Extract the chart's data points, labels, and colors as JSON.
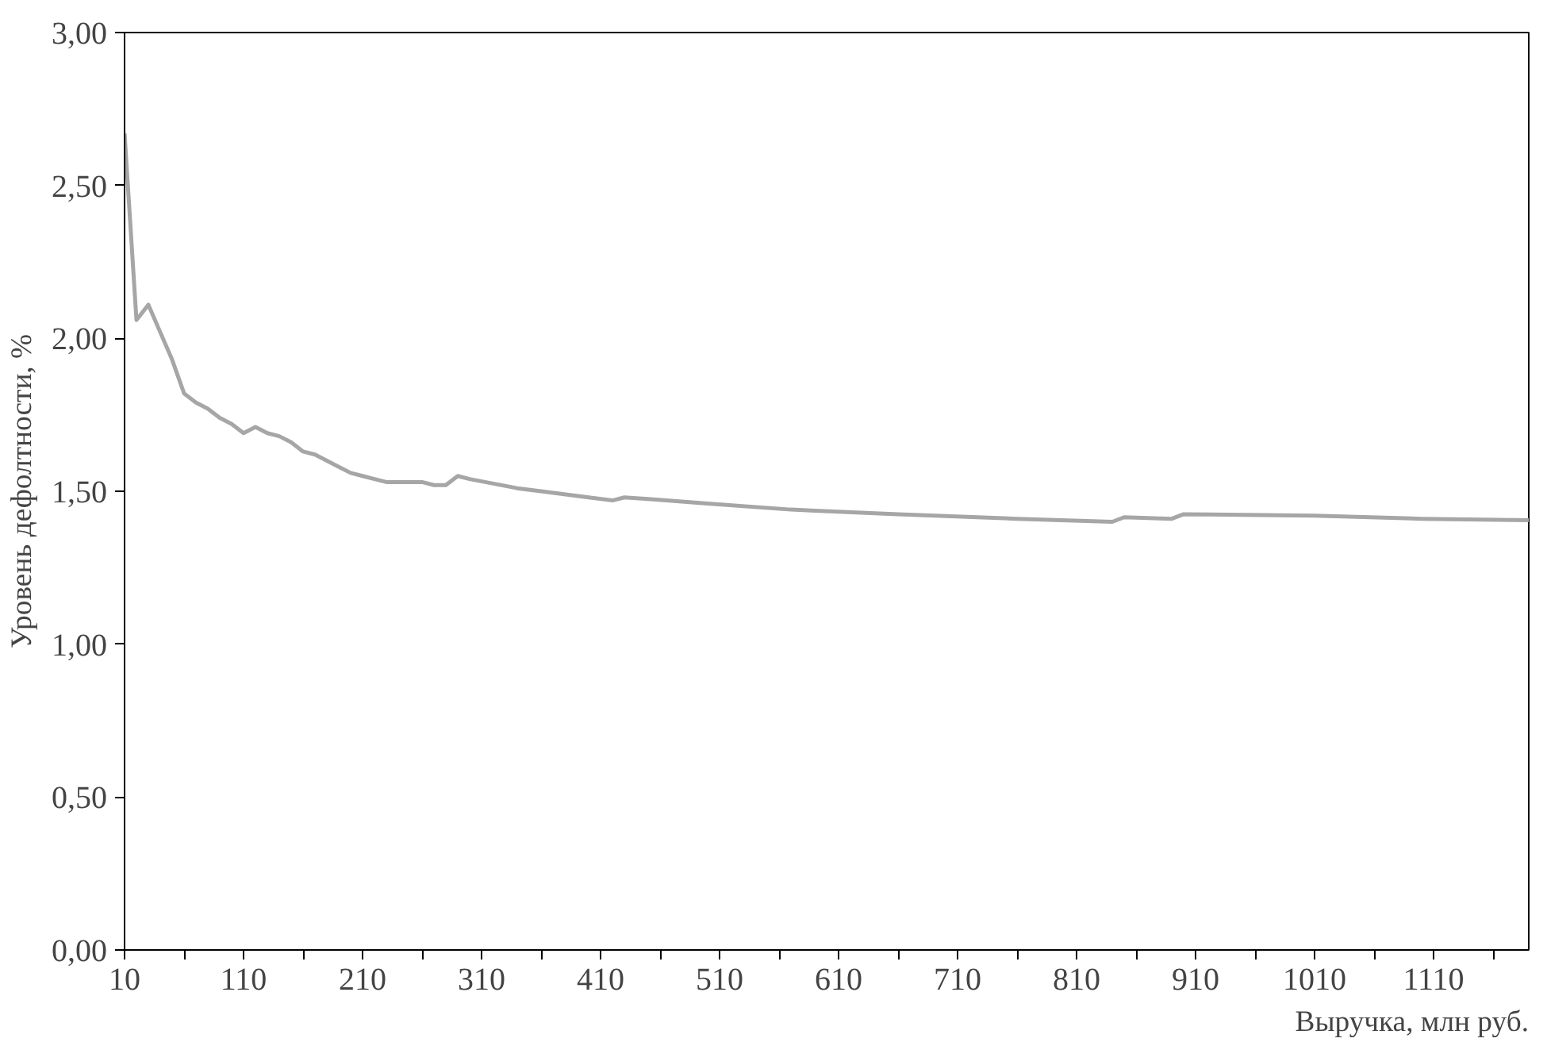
{
  "chart_data": {
    "type": "line",
    "xlabel": "Выручка, млн руб.",
    "ylabel": "Уровень дефолтности, %",
    "x": [
      10,
      20,
      30,
      40,
      50,
      60,
      70,
      80,
      90,
      100,
      110,
      120,
      130,
      140,
      150,
      160,
      170,
      180,
      190,
      200,
      210,
      220,
      230,
      240,
      250,
      260,
      270,
      280,
      290,
      300,
      340,
      360,
      400,
      420,
      430,
      450,
      500,
      570,
      660,
      760,
      840,
      850,
      890,
      900,
      1010,
      1100,
      1190
    ],
    "series": [
      {
        "color": "#a6a6a6",
        "values": [
          2.67,
          2.06,
          2.11,
          2.02,
          1.93,
          1.82,
          1.79,
          1.77,
          1.74,
          1.72,
          1.69,
          1.71,
          1.69,
          1.68,
          1.66,
          1.63,
          1.62,
          1.6,
          1.58,
          1.56,
          1.55,
          1.54,
          1.53,
          1.53,
          1.53,
          1.53,
          1.52,
          1.52,
          1.55,
          1.54,
          1.51,
          1.5,
          1.48,
          1.47,
          1.48,
          1.475,
          1.46,
          1.44,
          1.425,
          1.41,
          1.4,
          1.415,
          1.41,
          1.425,
          1.42,
          1.41,
          1.405
        ]
      }
    ],
    "xlim": [
      10,
      1190
    ],
    "ylim": [
      0,
      3
    ],
    "xticks": [
      10,
      {
        "value": 60,
        "label": null
      },
      110,
      {
        "value": 160,
        "label": null
      },
      210,
      {
        "value": 260,
        "label": null
      },
      310,
      {
        "value": 360,
        "label": null
      },
      410,
      {
        "value": 460,
        "label": null
      },
      510,
      {
        "value": 560,
        "label": null
      },
      610,
      {
        "value": 660,
        "label": null
      },
      710,
      {
        "value": 760,
        "label": null
      },
      810,
      {
        "value": 860,
        "label": null
      },
      910,
      {
        "value": 960,
        "label": null
      },
      1010,
      {
        "value": 1060,
        "label": null
      },
      1110,
      {
        "value": 1160,
        "label": null
      }
    ],
    "yticks": [
      {
        "value": 0,
        "label": "0,00"
      },
      {
        "value": 0.5,
        "label": "0,50"
      },
      {
        "value": 1,
        "label": "1,00"
      },
      {
        "value": 1.5,
        "label": "1,50"
      },
      {
        "value": 2,
        "label": "2,00"
      },
      {
        "value": 2.5,
        "label": "2,50"
      },
      {
        "value": 3,
        "label": "3,00"
      }
    ],
    "grid": false,
    "marker": "none",
    "line_style": "solid"
  }
}
